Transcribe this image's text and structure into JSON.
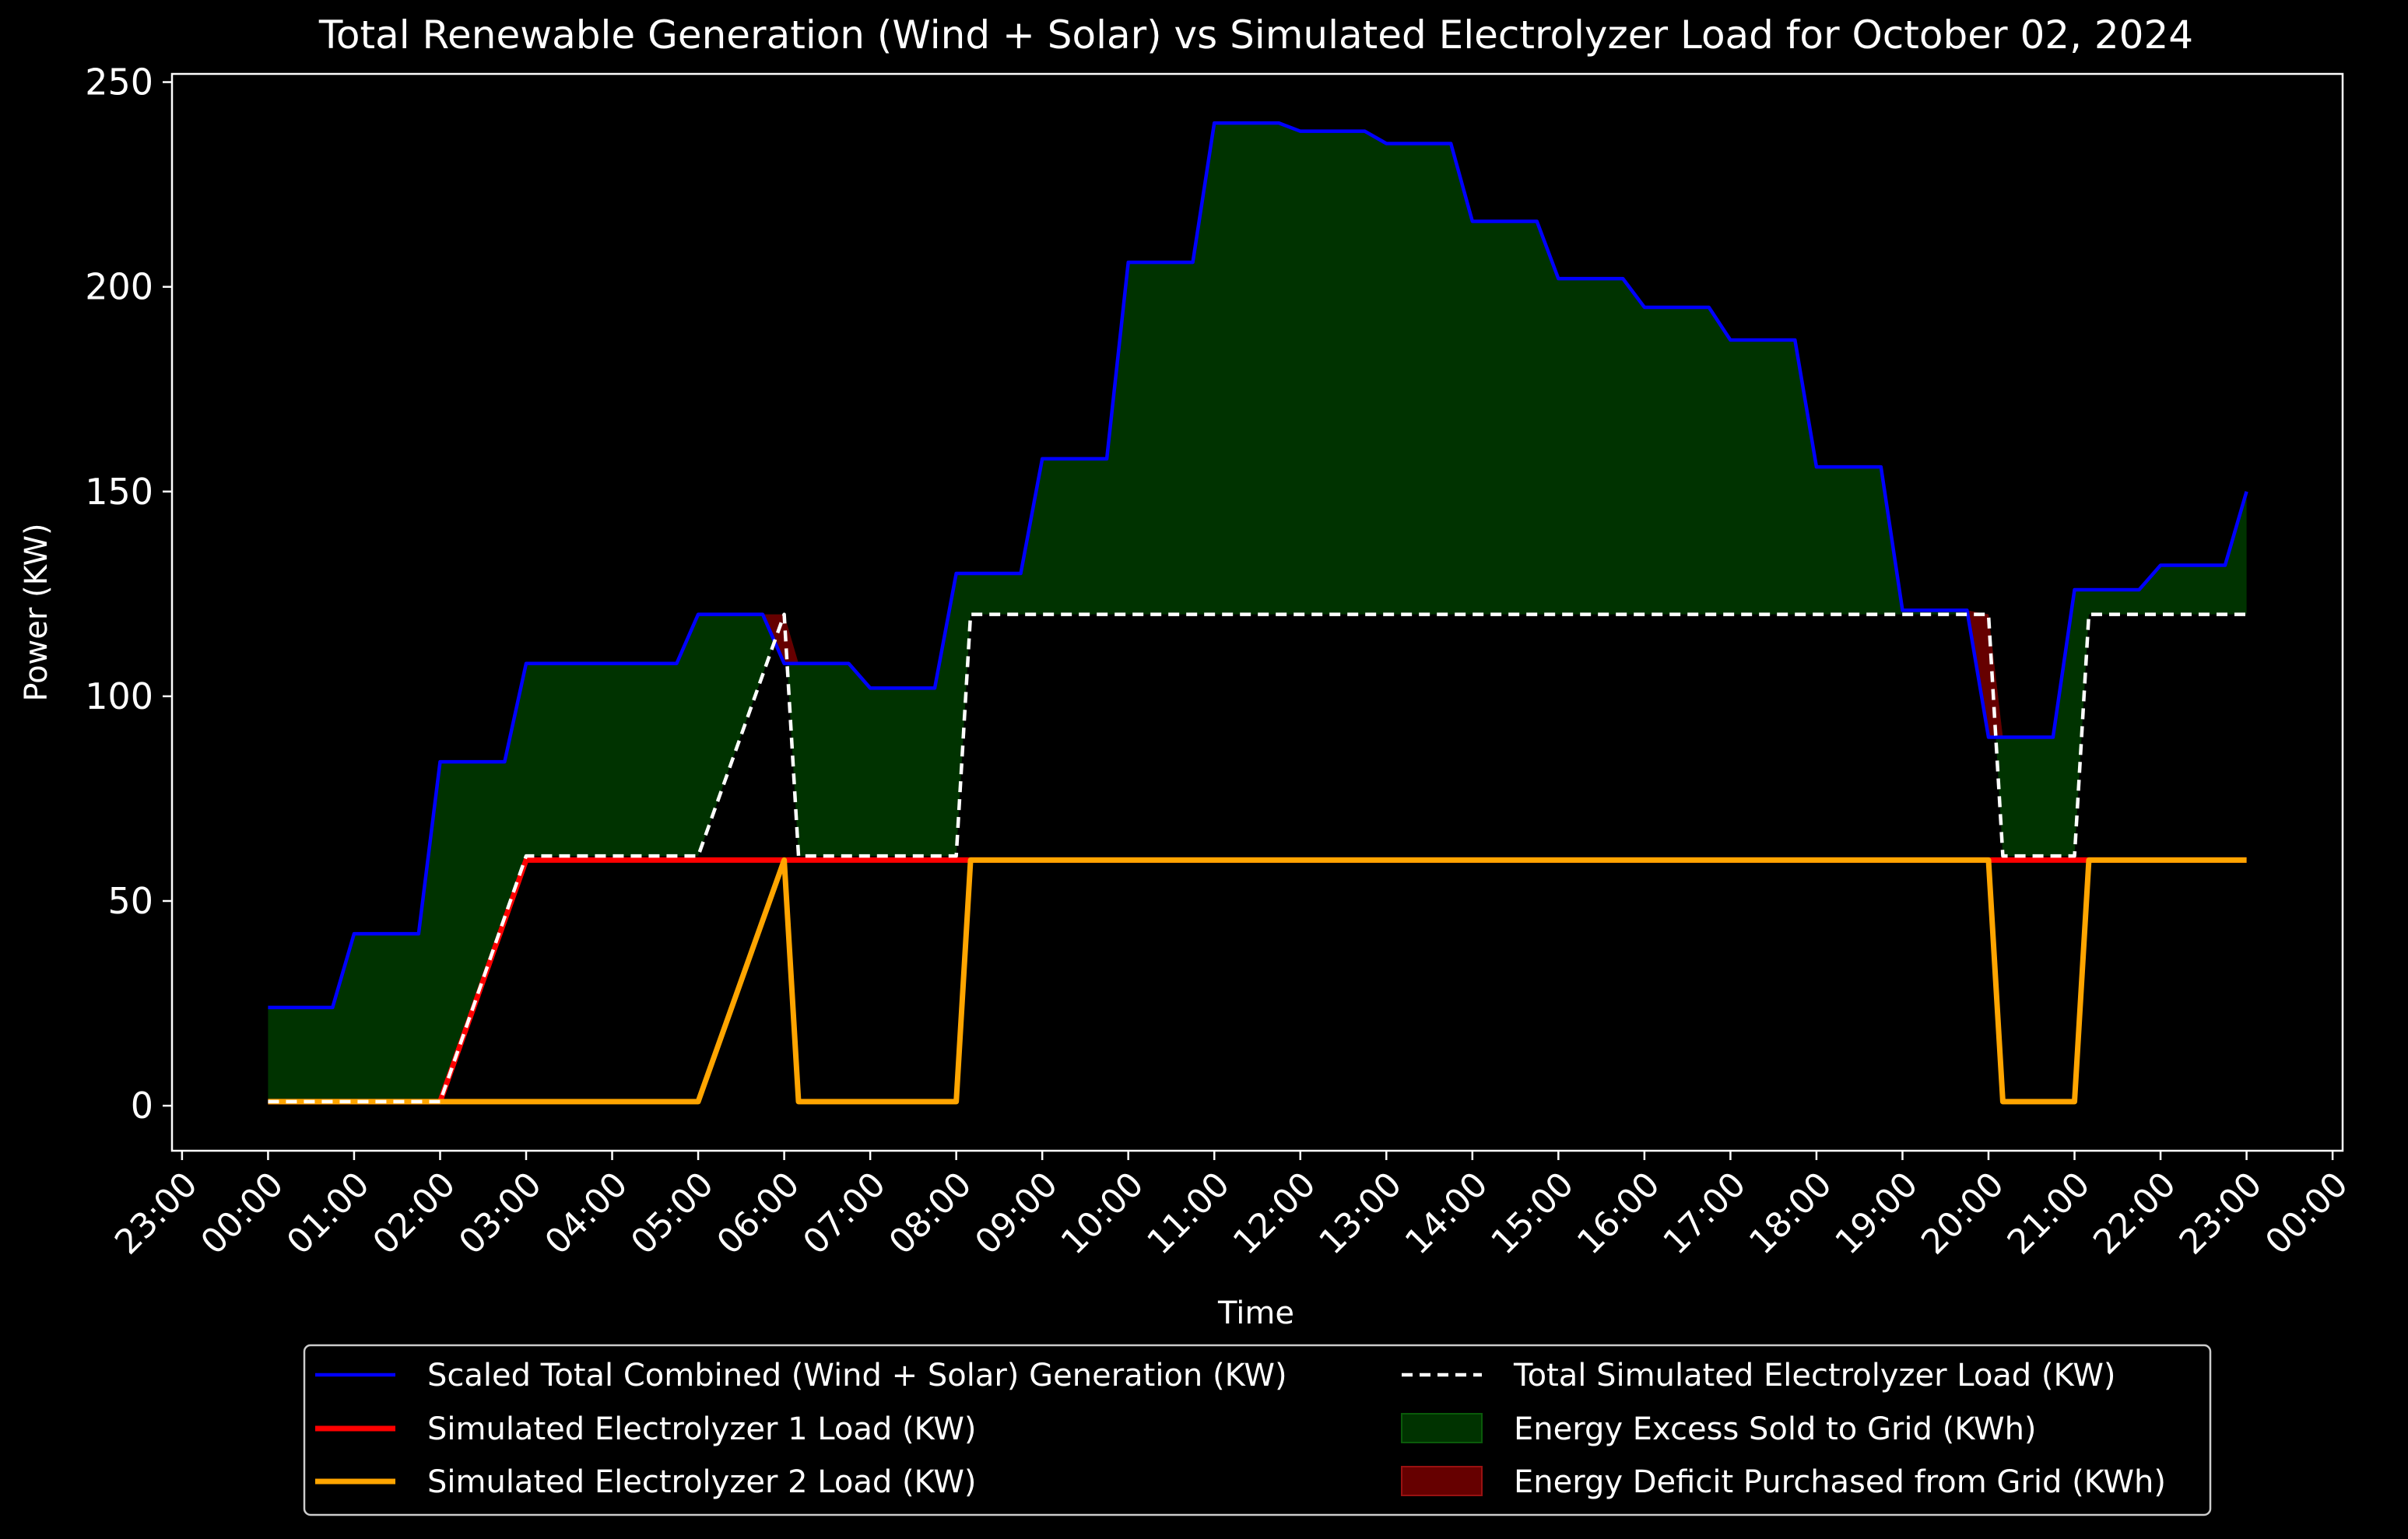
{
  "chart_data": {
    "type": "line",
    "title": "Total Renewable Generation (Wind + Solar) vs Simulated Electrolyzer Load for October 02, 2024",
    "xlabel": "Time",
    "ylabel": "Power (KW)",
    "ylim": [
      -11,
      252
    ],
    "xlim": [
      "2024-10-01 22:53",
      "2024-10-03 00:07"
    ],
    "yticks": [
      0,
      50,
      100,
      150,
      200,
      250
    ],
    "xticks": [
      "2024-10-01 23:00",
      "2024-10-02 00:00",
      "2024-10-02 01:00",
      "2024-10-02 02:00",
      "2024-10-02 03:00",
      "2024-10-02 04:00",
      "2024-10-02 05:00",
      "2024-10-02 06:00",
      "2024-10-02 07:00",
      "2024-10-02 08:00",
      "2024-10-02 09:00",
      "2024-10-02 10:00",
      "2024-10-02 11:00",
      "2024-10-02 12:00",
      "2024-10-02 13:00",
      "2024-10-02 14:00",
      "2024-10-02 15:00",
      "2024-10-02 16:00",
      "2024-10-02 17:00",
      "2024-10-02 18:00",
      "2024-10-02 19:00",
      "2024-10-02 20:00",
      "2024-10-02 21:00",
      "2024-10-02 22:00",
      "2024-10-02 23:00",
      "2024-10-03 00:00"
    ],
    "xtick_labels": [
      "23:00",
      "00:00",
      "01:00",
      "02:00",
      "03:00",
      "04:00",
      "05:00",
      "06:00",
      "07:00",
      "08:00",
      "09:00",
      "10:00",
      "11:00",
      "12:00",
      "13:00",
      "14:00",
      "15:00",
      "16:00",
      "17:00",
      "18:00",
      "19:00",
      "20:00",
      "21:00",
      "22:00",
      "23:00",
      "00:00"
    ],
    "grid": false,
    "legend_position": "below plot, two columns",
    "series": [
      {
        "name": "Scaled Total Combined (Wind + Solar) Generation (KW)",
        "color": "#0000ff",
        "points": [
          [
            "2024-10-02 00:00",
            24
          ],
          [
            "2024-10-02 00:45",
            24
          ],
          [
            "2024-10-02 01:00",
            42
          ],
          [
            "2024-10-02 01:45",
            42
          ],
          [
            "2024-10-02 02:00",
            84
          ],
          [
            "2024-10-02 02:45",
            84
          ],
          [
            "2024-10-02 03:00",
            108
          ],
          [
            "2024-10-02 04:45",
            108
          ],
          [
            "2024-10-02 05:00",
            120
          ],
          [
            "2024-10-02 05:45",
            120
          ],
          [
            "2024-10-02 06:00",
            108
          ],
          [
            "2024-10-02 06:45",
            108
          ],
          [
            "2024-10-02 07:00",
            102
          ],
          [
            "2024-10-02 07:45",
            102
          ],
          [
            "2024-10-02 08:00",
            130
          ],
          [
            "2024-10-02 08:45",
            130
          ],
          [
            "2024-10-02 09:00",
            158
          ],
          [
            "2024-10-02 09:45",
            158
          ],
          [
            "2024-10-02 10:00",
            206
          ],
          [
            "2024-10-02 10:45",
            206
          ],
          [
            "2024-10-02 11:00",
            240
          ],
          [
            "2024-10-02 11:45",
            240
          ],
          [
            "2024-10-02 12:00",
            238
          ],
          [
            "2024-10-02 12:45",
            238
          ],
          [
            "2024-10-02 13:00",
            235
          ],
          [
            "2024-10-02 13:45",
            235
          ],
          [
            "2024-10-02 14:00",
            216
          ],
          [
            "2024-10-02 14:45",
            216
          ],
          [
            "2024-10-02 15:00",
            202
          ],
          [
            "2024-10-02 15:45",
            202
          ],
          [
            "2024-10-02 16:00",
            195
          ],
          [
            "2024-10-02 16:45",
            195
          ],
          [
            "2024-10-02 17:00",
            187
          ],
          [
            "2024-10-02 17:45",
            187
          ],
          [
            "2024-10-02 18:00",
            156
          ],
          [
            "2024-10-02 18:45",
            156
          ],
          [
            "2024-10-02 19:00",
            121
          ],
          [
            "2024-10-02 19:45",
            121
          ],
          [
            "2024-10-02 20:00",
            90
          ],
          [
            "2024-10-02 20:45",
            90
          ],
          [
            "2024-10-02 21:00",
            126
          ],
          [
            "2024-10-02 21:45",
            126
          ],
          [
            "2024-10-02 22:00",
            132
          ],
          [
            "2024-10-02 22:45",
            132
          ],
          [
            "2024-10-02 23:00",
            150
          ]
        ]
      },
      {
        "name": "Simulated Electrolyzer 1 Load (KW)",
        "color": "#ff0000",
        "points": [
          [
            "2024-10-02 00:00",
            1
          ],
          [
            "2024-10-02 02:00",
            1
          ],
          [
            "2024-10-02 03:00",
            60
          ],
          [
            "2024-10-02 20:00",
            60
          ],
          [
            "2024-10-02 21:00",
            60
          ],
          [
            "2024-10-02 23:00",
            60
          ]
        ]
      },
      {
        "name": "Simulated Electrolyzer 2 Load (KW)",
        "color": "#ffa500",
        "points": [
          [
            "2024-10-02 00:00",
            1
          ],
          [
            "2024-10-02 05:00",
            1
          ],
          [
            "2024-10-02 06:00",
            60
          ],
          [
            "2024-10-02 06:10",
            1
          ],
          [
            "2024-10-02 08:00",
            1
          ],
          [
            "2024-10-02 08:10",
            60
          ],
          [
            "2024-10-02 20:00",
            60
          ],
          [
            "2024-10-02 20:10",
            1
          ],
          [
            "2024-10-02 21:00",
            1
          ],
          [
            "2024-10-02 21:10",
            60
          ],
          [
            "2024-10-02 23:00",
            60
          ]
        ]
      },
      {
        "name": "Total Simulated Electrolyzer Load (KW)",
        "color": "#ffffff",
        "points": [
          [
            "2024-10-02 00:00",
            1
          ],
          [
            "2024-10-02 02:00",
            1
          ],
          [
            "2024-10-02 03:00",
            61
          ],
          [
            "2024-10-02 05:00",
            61
          ],
          [
            "2024-10-02 06:00",
            120
          ],
          [
            "2024-10-02 06:10",
            61
          ],
          [
            "2024-10-02 08:00",
            61
          ],
          [
            "2024-10-02 08:10",
            120
          ],
          [
            "2024-10-02 20:00",
            120
          ],
          [
            "2024-10-02 20:10",
            61
          ],
          [
            "2024-10-02 21:00",
            61
          ],
          [
            "2024-10-02 21:10",
            120
          ],
          [
            "2024-10-02 23:00",
            120
          ]
        ]
      }
    ],
    "fills": [
      {
        "name": "Energy Excess Sold to Grid (KWh)",
        "color": "#003300"
      },
      {
        "name": "Energy Deficit Purchased from Grid (KWh)",
        "color": "#660000"
      }
    ],
    "legend_entries": [
      {
        "label": "Scaled Total Combined (Wind + Solar) Generation (KW)",
        "color": "#0000ff",
        "style": "line"
      },
      {
        "label": "Simulated Electrolyzer 1 Load (KW)",
        "color": "#ff0000",
        "style": "thick"
      },
      {
        "label": "Simulated Electrolyzer 2 Load (KW)",
        "color": "#ffa500",
        "style": "thick"
      },
      {
        "label": "Total Simulated Electrolyzer Load (KW)",
        "color": "#ffffff",
        "style": "dashed"
      },
      {
        "label": "Energy Excess Sold to Grid (KWh)",
        "color": "#003300",
        "style": "patch"
      },
      {
        "label": "Energy Deficit Purchased from Grid (KWh)",
        "color": "#660000",
        "style": "patch"
      }
    ]
  }
}
